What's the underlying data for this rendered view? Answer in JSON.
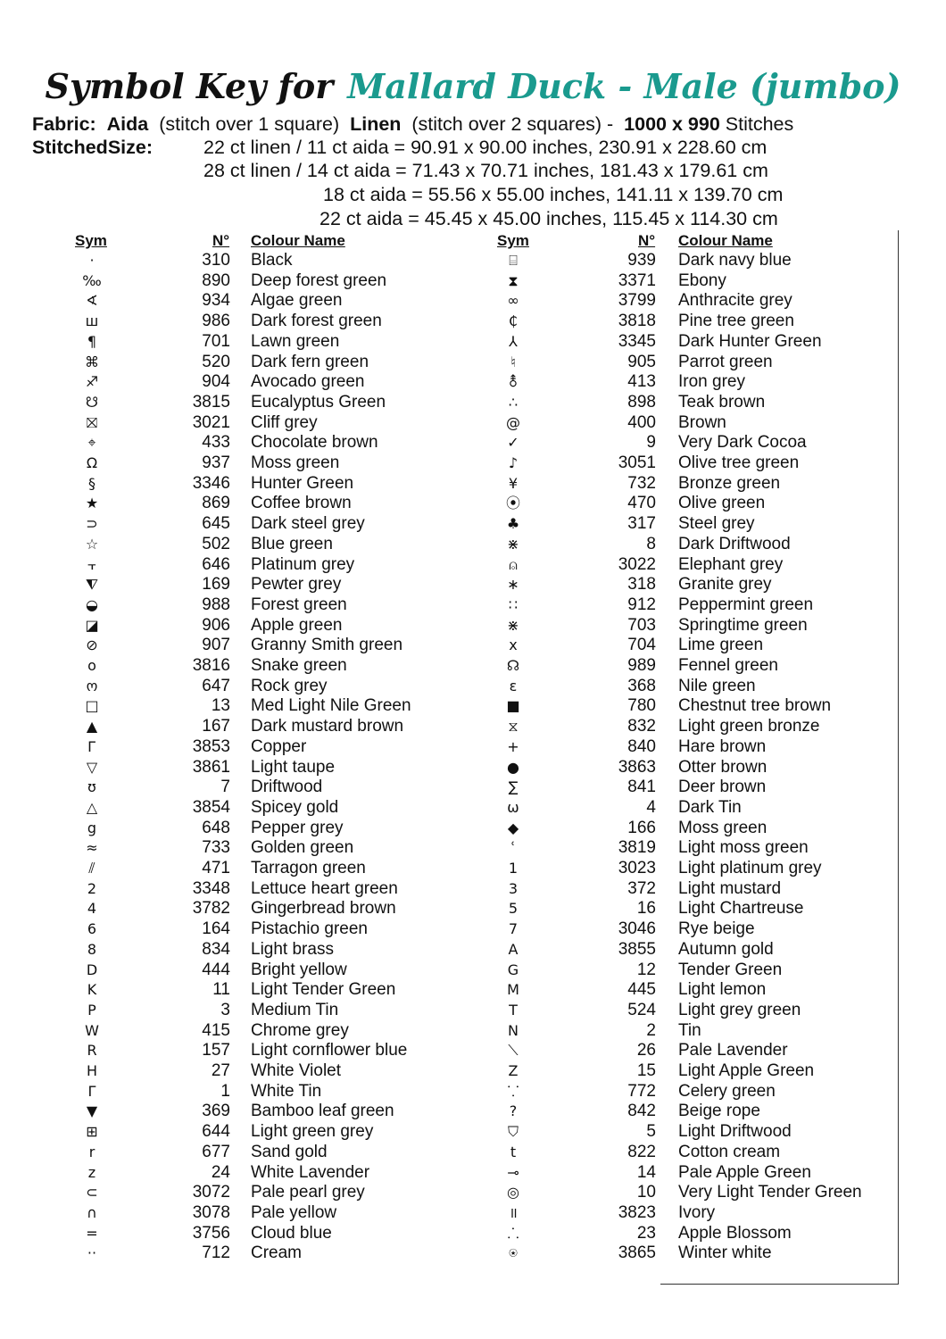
{
  "title": {
    "prefix": "Symbol Key for",
    "pattern": "Mallard Duck - Male (jumbo)",
    "accent": "#1a9a8e"
  },
  "fabric": {
    "label": "Fabric:",
    "aida": "Aida",
    "aida_note": "(stitch over 1 square)",
    "linen": "Linen",
    "linen_note": "(stitch over 2 squares) -",
    "stitches": "1000 x 990",
    "stitches_label": "Stitches"
  },
  "sizes": {
    "label": "StitchedSize:",
    "lines": [
      "22 ct linen / 11 ct aida = 90.91 x 90.00 inches, 230.91 x 228.60 cm",
      "28 ct linen / 14 ct aida = 71.43 x 70.71 inches, 181.43 x 179.61 cm",
      "18 ct aida  = 55.56 x 55.00 inches, 141.11 x 139.70 cm",
      "22 ct aida = 45.45 x 45.00 inches, 115.45 x 114.30 cm"
    ]
  },
  "headers": {
    "sym": "Sym",
    "num": "N°",
    "name": "Colour Name"
  },
  "left": [
    [
      "·",
      "310",
      "Black"
    ],
    [
      "‰",
      "890",
      "Deep forest green"
    ],
    [
      "∢",
      "934",
      "Algae green"
    ],
    [
      "ш",
      "986",
      "Dark forest green"
    ],
    [
      "¶",
      "701",
      "Lawn green"
    ],
    [
      "⌘",
      "520",
      "Dark fern green"
    ],
    [
      "♐",
      "904",
      "Avocado green"
    ],
    [
      "☋",
      "3815",
      "Eucalyptus Green"
    ],
    [
      "⛝",
      "3021",
      "Cliff grey"
    ],
    [
      "⌖",
      "433",
      "Chocolate brown"
    ],
    [
      "Ω",
      "937",
      "Moss green"
    ],
    [
      "§",
      "3346",
      "Hunter Green"
    ],
    [
      "★",
      "869",
      "Coffee brown"
    ],
    [
      "⊃",
      "645",
      "Dark steel grey"
    ],
    [
      "☆",
      "502",
      "Blue green"
    ],
    [
      "⫟",
      "646",
      "Platinum grey"
    ],
    [
      "⧨",
      "169",
      "Pewter grey"
    ],
    [
      "◒",
      "988",
      "Forest green"
    ],
    [
      "◪",
      "906",
      "Apple green"
    ],
    [
      "⊘",
      "907",
      "Granny Smith green"
    ],
    [
      "o",
      "3816",
      "Snake green"
    ],
    [
      "ო",
      "647",
      "Rock grey"
    ],
    [
      "□",
      "13",
      "Med Light Nile Green"
    ],
    [
      "▲",
      "167",
      "Dark mustard brown"
    ],
    [
      "Г",
      "3853",
      "Copper"
    ],
    [
      "▽",
      "3861",
      "Light taupe"
    ],
    [
      "ʊ",
      "7",
      "Driftwood"
    ],
    [
      "△",
      "3854",
      "Spicey gold"
    ],
    [
      "g",
      "648",
      "Pepper grey"
    ],
    [
      "≈",
      "733",
      "Golden green"
    ],
    [
      "⫽",
      "471",
      "Tarragon green"
    ],
    [
      "2",
      "3348",
      "Lettuce heart green"
    ],
    [
      "4",
      "3782",
      "Gingerbread brown"
    ],
    [
      "6",
      "164",
      "Pistachio green"
    ],
    [
      "8",
      "834",
      "Light brass"
    ],
    [
      "D",
      "444",
      "Bright yellow"
    ],
    [
      "K",
      "11",
      "Light Tender Green"
    ],
    [
      "P",
      "3",
      "Medium Tin"
    ],
    [
      "W",
      "415",
      "Chrome grey"
    ],
    [
      "R",
      "157",
      "Light cornflower blue"
    ],
    [
      "H",
      "27",
      "White Violet"
    ],
    [
      "Γ",
      "1",
      "White Tin"
    ],
    [
      "▼",
      "369",
      "Bamboo leaf green"
    ],
    [
      "⊞",
      "644",
      "Light green grey"
    ],
    [
      "r",
      "677",
      "Sand gold"
    ],
    [
      "z",
      "24",
      "White Lavender"
    ],
    [
      "⊂",
      "3072",
      "Pale pearl grey"
    ],
    [
      "∩",
      "3078",
      "Pale yellow"
    ],
    [
      "=",
      "3756",
      "Cloud blue"
    ],
    [
      "··",
      "712",
      "Cream"
    ]
  ],
  "right": [
    [
      "⌸",
      "939",
      "Dark navy blue"
    ],
    [
      "⧗",
      "3371",
      "Ebony"
    ],
    [
      "∞",
      "3799",
      "Anthracite grey"
    ],
    [
      "₵",
      "3818",
      "Pine tree green"
    ],
    [
      "⅄",
      "3345",
      "Dark Hunter Green"
    ],
    [
      "♮",
      "905",
      "Parrot green"
    ],
    [
      "⚨",
      "413",
      "Iron grey"
    ],
    [
      "∴",
      "898",
      "Teak brown"
    ],
    [
      "@",
      "400",
      "Brown"
    ],
    [
      "✓",
      "9",
      "Very Dark Cocoa"
    ],
    [
      "♪",
      "3051",
      "Olive tree green"
    ],
    [
      "¥",
      "732",
      "Bronze green"
    ],
    [
      "⦿",
      "470",
      "Olive green"
    ],
    [
      "♣",
      "317",
      "Steel grey"
    ],
    [
      "⋇",
      "8",
      "Dark Driftwood"
    ],
    [
      "⍝",
      "3022",
      "Elephant grey"
    ],
    [
      "∗",
      "318",
      "Granite grey"
    ],
    [
      "∷",
      "912",
      "Peppermint green"
    ],
    [
      "⋇",
      "703",
      "Springtime green"
    ],
    [
      "x",
      "704",
      "Lime green"
    ],
    [
      "☊",
      "989",
      "Fennel green"
    ],
    [
      "ɛ",
      "368",
      "Nile green"
    ],
    [
      "■",
      "780",
      "Chestnut tree brown"
    ],
    [
      "⧖",
      "832",
      "Light green bronze"
    ],
    [
      "+",
      "840",
      "Hare brown"
    ],
    [
      "●",
      "3863",
      "Otter brown"
    ],
    [
      "∑",
      "841",
      "Deer brown"
    ],
    [
      "ω",
      "4",
      "Dark Tin"
    ],
    [
      "◆",
      "166",
      "Moss green"
    ],
    [
      "ʿ",
      "3819",
      "Light moss green"
    ],
    [
      "1",
      "3023",
      "Light platinum grey"
    ],
    [
      "3",
      "372",
      "Light mustard"
    ],
    [
      "5",
      "16",
      "Light Chartreuse"
    ],
    [
      "7",
      "3046",
      "Rye beige"
    ],
    [
      "A",
      "3855",
      "Autumn gold"
    ],
    [
      "G",
      "12",
      "Tender Green"
    ],
    [
      "M",
      "445",
      "Light lemon"
    ],
    [
      "T",
      "524",
      "Light grey green"
    ],
    [
      "N",
      "2",
      "Tin"
    ],
    [
      "⟍",
      "26",
      "Pale Lavender"
    ],
    [
      "Z",
      "15",
      "Light Apple Green"
    ],
    [
      "⸪",
      "772",
      "Celery green"
    ],
    [
      "?",
      "842",
      "Beige rope"
    ],
    [
      "⛉",
      "5",
      "Light Driftwood"
    ],
    [
      "t",
      "822",
      "Cotton cream"
    ],
    [
      "⊸",
      "14",
      "Pale Apple Green"
    ],
    [
      "◎",
      "10",
      "Very Light Tender Green"
    ],
    [
      "॥",
      "3823",
      "Ivory"
    ],
    [
      "⸫",
      "23",
      "Apple Blossom"
    ],
    [
      "⍟",
      "3865",
      "Winter white"
    ]
  ]
}
